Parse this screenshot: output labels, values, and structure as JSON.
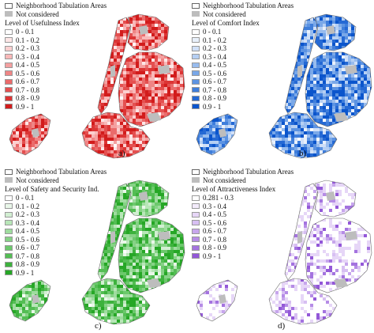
{
  "legend_common": {
    "nta_label": "Neighborhood Tabulation Areas",
    "not_considered_label": "Not considered",
    "not_considered_color": "#bdbdbd"
  },
  "panels": [
    {
      "caption": "a)",
      "title": "Level of Usefulness Index",
      "classes": [
        "0 - 0.1",
        "0.1 - 0.2",
        "0.2 - 0.3",
        "0.3 - 0.4",
        "0.4 - 0.5",
        "0.5 - 0.6",
        "0.6 - 0.7",
        "0.7 - 0.8",
        "0.8 - 0.9",
        "0.9 - 1"
      ],
      "colors": [
        "#ffffff",
        "#fde6e6",
        "#fbd0d0",
        "#f8b8b8",
        "#f4a0a0",
        "#ef8585",
        "#ea6b6b",
        "#e45050",
        "#dc3535",
        "#d21c1c"
      ],
      "dominant_color": "#e33b3b"
    },
    {
      "caption": "b)",
      "title": "Level of Comfort Index",
      "classes": [
        "0 - 0.1",
        "0.1 - 0.2",
        "0.2 - 0.3",
        "0.3 - 0.4",
        "0.4 - 0.5",
        "0.5 - 0.6",
        "0.6 - 0.7",
        "0.7 - 0.8",
        "0.8 - 0.9",
        "0.9 - 1"
      ],
      "colors": [
        "#ffffff",
        "#e8f0fb",
        "#d0e0f8",
        "#b5cff3",
        "#98bcee",
        "#7aa8e8",
        "#5c93e2",
        "#3f7edb",
        "#2569d4",
        "#0b55cc"
      ],
      "dominant_color": "#1f66d6"
    },
    {
      "caption": "c)",
      "title": "Level of Safety and Security Ind.",
      "classes": [
        "0 - 0.1",
        "0.1 - 0.2",
        "0.2 - 0.3",
        "0.3 - 0.4",
        "0.4 - 0.5",
        "0.5 - 0.6",
        "0.6 - 0.7",
        "0.7 - 0.8",
        "0.8 - 0.9",
        "0.9 - 1"
      ],
      "colors": [
        "#ffffff",
        "#e9f7e9",
        "#d2efd2",
        "#b8e6b8",
        "#9fdc9f",
        "#86d286",
        "#6cc86c",
        "#54bd54",
        "#3db23d",
        "#26a726"
      ],
      "dominant_color": "#4fbf59"
    },
    {
      "caption": "d)",
      "title": "Level of Attractiveness Index",
      "classes": [
        "0.281 - 0.3",
        "0.3 - 0.4",
        "0.4 - 0.5",
        "0.5 - 0.6",
        "0.6 - 0.7",
        "0.7 - 0.8",
        "0.8 - 0.9",
        "0.9 - 1"
      ],
      "colors": [
        "#ffffff",
        "#f3ebfb",
        "#e6d6f7",
        "#d7bff2",
        "#c7a6ec",
        "#b68ce6",
        "#a473df",
        "#9358d8"
      ],
      "dominant_color": "#b48ae6"
    }
  ]
}
